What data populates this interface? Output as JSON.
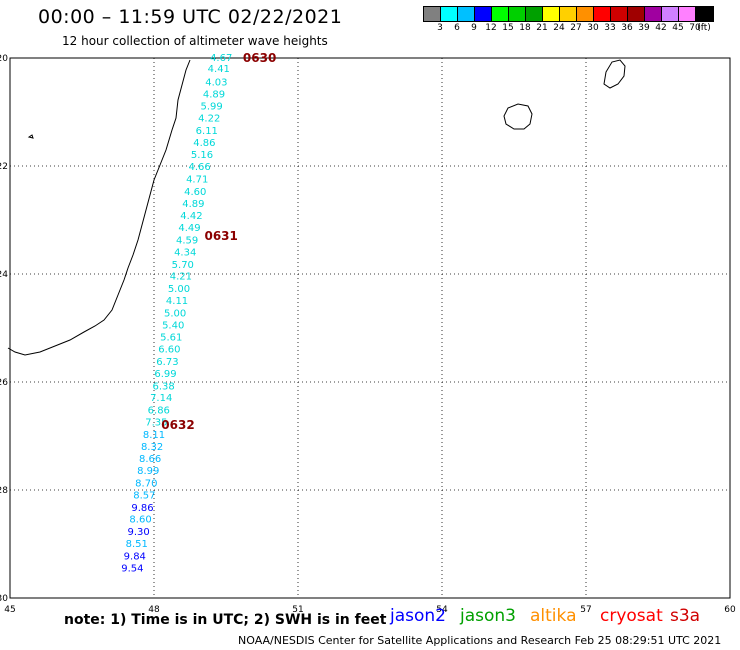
{
  "header": {
    "title": "00:00 – 11:59 UTC 02/22/2021",
    "subtitle": "12 hour collection of altimeter wave heights"
  },
  "colorbar": {
    "colors": [
      "#808080",
      "#00ffff",
      "#00c0ff",
      "#0000ff",
      "#00ff00",
      "#00d000",
      "#00a000",
      "#ffff00",
      "#ffd000",
      "#ff9000",
      "#ff0000",
      "#d00000",
      "#a00000",
      "#a000a0",
      "#d080ff",
      "#ff80ff",
      "#000000"
    ],
    "labels": [
      "3",
      "6",
      "9",
      "12",
      "15",
      "18",
      "21",
      "24",
      "27",
      "30",
      "33",
      "36",
      "39",
      "42",
      "45",
      "70",
      "(ft)"
    ]
  },
  "map": {
    "lon_ticks": [
      "45",
      "48",
      "51",
      "54",
      "57",
      "60"
    ],
    "lat_ticks": [
      "-20",
      "-22",
      "-24",
      "-26",
      "-28",
      "-30"
    ],
    "lon_range": [
      45,
      60
    ],
    "lat_range": [
      -20,
      -30
    ]
  },
  "passes": [
    {
      "label": "0630",
      "lon": 50.2,
      "lat": -20.0
    },
    {
      "label": "0631",
      "lon": 49.4,
      "lat": -23.3
    },
    {
      "label": "0632",
      "lon": 48.5,
      "lat": -26.8
    }
  ],
  "swh": [
    {
      "v": "4.67",
      "lon": 49.4,
      "lat": -20.0,
      "c": "#00d8d8"
    },
    {
      "v": "4.41",
      "lon": 49.35,
      "lat": -20.2,
      "c": "#00d8d8"
    },
    {
      "v": "4.03",
      "lon": 49.3,
      "lat": -20.45,
      "c": "#00d8d8"
    },
    {
      "v": "4.89",
      "lon": 49.25,
      "lat": -20.68,
      "c": "#00d8d8"
    },
    {
      "v": "5.99",
      "lon": 49.2,
      "lat": -20.9,
      "c": "#00d8d8"
    },
    {
      "v": "4.22",
      "lon": 49.15,
      "lat": -21.12,
      "c": "#00d8d8"
    },
    {
      "v": "6.11",
      "lon": 49.1,
      "lat": -21.35,
      "c": "#00d8d8"
    },
    {
      "v": "4.86",
      "lon": 49.05,
      "lat": -21.57,
      "c": "#00d8d8"
    },
    {
      "v": "5.16",
      "lon": 49.0,
      "lat": -21.8,
      "c": "#00d8d8"
    },
    {
      "v": "4.66",
      "lon": 48.95,
      "lat": -22.02,
      "c": "#00d8d8"
    },
    {
      "v": "4.71",
      "lon": 48.9,
      "lat": -22.25,
      "c": "#00d8d8"
    },
    {
      "v": "4.60",
      "lon": 48.86,
      "lat": -22.48,
      "c": "#00d8d8"
    },
    {
      "v": "4.89",
      "lon": 48.82,
      "lat": -22.7,
      "c": "#00d8d8"
    },
    {
      "v": "4.42",
      "lon": 48.78,
      "lat": -22.93,
      "c": "#00d8d8"
    },
    {
      "v": "4.49",
      "lon": 48.74,
      "lat": -23.15,
      "c": "#00d8d8"
    },
    {
      "v": "4.59",
      "lon": 48.69,
      "lat": -23.38,
      "c": "#00d8d8"
    },
    {
      "v": "4.34",
      "lon": 48.65,
      "lat": -23.6,
      "c": "#00d8d8"
    },
    {
      "v": "5.70",
      "lon": 48.6,
      "lat": -23.83,
      "c": "#00d8d8"
    },
    {
      "v": "4.21",
      "lon": 48.56,
      "lat": -24.05,
      "c": "#00d8d8"
    },
    {
      "v": "5.00",
      "lon": 48.52,
      "lat": -24.28,
      "c": "#00d8d8"
    },
    {
      "v": "4.11",
      "lon": 48.48,
      "lat": -24.5,
      "c": "#00d8d8"
    },
    {
      "v": "5.00",
      "lon": 48.44,
      "lat": -24.73,
      "c": "#00d8d8"
    },
    {
      "v": "5.40",
      "lon": 48.4,
      "lat": -24.95,
      "c": "#00d8d8"
    },
    {
      "v": "5.61",
      "lon": 48.36,
      "lat": -25.18,
      "c": "#00d8d8"
    },
    {
      "v": "6.60",
      "lon": 48.32,
      "lat": -25.4,
      "c": "#00d8d8"
    },
    {
      "v": "6.73",
      "lon": 48.28,
      "lat": -25.63,
      "c": "#00d8d8"
    },
    {
      "v": "6.99",
      "lon": 48.24,
      "lat": -25.85,
      "c": "#00d8d8"
    },
    {
      "v": "6.38",
      "lon": 48.2,
      "lat": -26.08,
      "c": "#00d8d8"
    },
    {
      "v": "7.14",
      "lon": 48.15,
      "lat": -26.3,
      "c": "#00d8d8"
    },
    {
      "v": "6.86",
      "lon": 48.1,
      "lat": -26.53,
      "c": "#00d8d8"
    },
    {
      "v": "7.35",
      "lon": 48.05,
      "lat": -26.75,
      "c": "#00d8d8"
    },
    {
      "v": "8.11",
      "lon": 48.0,
      "lat": -26.98,
      "c": "#00b8ff"
    },
    {
      "v": "8.32",
      "lon": 47.96,
      "lat": -27.2,
      "c": "#00b8ff"
    },
    {
      "v": "8.66",
      "lon": 47.92,
      "lat": -27.43,
      "c": "#00b8ff"
    },
    {
      "v": "8.99",
      "lon": 47.88,
      "lat": -27.65,
      "c": "#00b8ff"
    },
    {
      "v": "8.70",
      "lon": 47.84,
      "lat": -27.88,
      "c": "#00b8ff"
    },
    {
      "v": "8.57",
      "lon": 47.8,
      "lat": -28.1,
      "c": "#00b8ff"
    },
    {
      "v": "9.86",
      "lon": 47.76,
      "lat": -28.33,
      "c": "#0000ff"
    },
    {
      "v": "8.60",
      "lon": 47.72,
      "lat": -28.55,
      "c": "#00b8ff"
    },
    {
      "v": "9.30",
      "lon": 47.68,
      "lat": -28.78,
      "c": "#0000ff"
    },
    {
      "v": "8.51",
      "lon": 47.64,
      "lat": -29.0,
      "c": "#00b8ff"
    },
    {
      "v": "9.84",
      "lon": 47.6,
      "lat": -29.23,
      "c": "#0000ff"
    },
    {
      "v": "9.54",
      "lon": 47.55,
      "lat": -29.45,
      "c": "#0000ff"
    }
  ],
  "note": "note: 1) Time is in UTC; 2) SWH is in feet",
  "satellites": [
    {
      "name": "jason2",
      "color": "#0000ff"
    },
    {
      "name": "jason3",
      "color": "#00a000"
    },
    {
      "name": "altika",
      "color": "#ff9000"
    },
    {
      "name": "cryosat",
      "color": "#ff0000"
    },
    {
      "name": "s3a",
      "color": "#d00000"
    }
  ],
  "footer": "NOAA/NESDIS Center for Satellite Applications and Research    Feb 25 08:29:51 UTC 2021"
}
